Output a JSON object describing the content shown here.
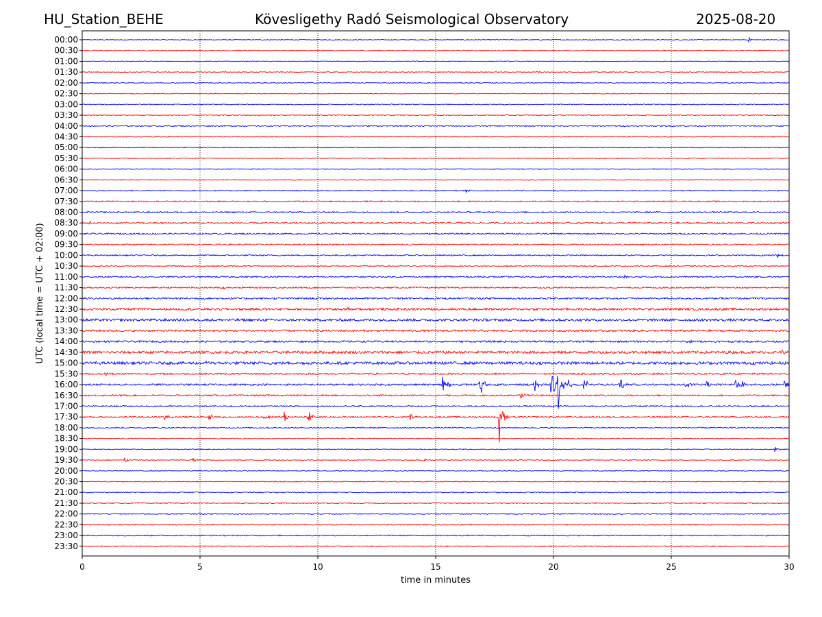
{
  "header": {
    "station": "HU_Station_BEHE",
    "observatory": "Kövesligethy Radó Seismological Observatory",
    "date": "2025-08-20"
  },
  "chart_data": {
    "type": "line",
    "title": "Kövesligethy Radó Seismological Observatory",
    "xlabel": "time in minutes",
    "ylabel": "UTC (local time = UTC + 02:00)",
    "xlim": [
      0,
      30
    ],
    "xticks": [
      0,
      5,
      10,
      15,
      20,
      25,
      30
    ],
    "vertical_gridlines_at": [
      5,
      10,
      15,
      20,
      25
    ],
    "grid": "vertical dotted",
    "row_labels": [
      "00:00",
      "00:30",
      "01:00",
      "01:30",
      "02:00",
      "02:30",
      "03:00",
      "03:30",
      "04:00",
      "04:30",
      "05:00",
      "05:30",
      "06:00",
      "06:30",
      "07:00",
      "07:30",
      "08:00",
      "08:30",
      "09:00",
      "09:30",
      "10:00",
      "10:30",
      "11:00",
      "11:30",
      "12:00",
      "12:30",
      "13:00",
      "13:30",
      "14:00",
      "14:30",
      "15:00",
      "15:30",
      "16:00",
      "16:30",
      "17:00",
      "17:30",
      "18:00",
      "18:30",
      "19:00",
      "19:30",
      "20:00",
      "20:30",
      "21:00",
      "21:30",
      "22:00",
      "22:30",
      "23:00",
      "23:30"
    ],
    "trace_colors": [
      "#0000ff",
      "#ff0000"
    ],
    "noise_amplitude_by_row": [
      0.6,
      0.6,
      0.5,
      0.6,
      0.6,
      0.5,
      0.6,
      0.6,
      0.8,
      0.6,
      0.6,
      0.6,
      0.6,
      0.6,
      0.8,
      0.9,
      1.0,
      1.1,
      1.0,
      0.9,
      0.9,
      0.8,
      1.0,
      1.0,
      1.3,
      1.6,
      1.8,
      1.4,
      1.3,
      1.9,
      2.0,
      1.2,
      1.3,
      1.1,
      1.0,
      1.0,
      0.8,
      0.6,
      0.6,
      0.6,
      0.6,
      0.6,
      0.7,
      0.6,
      0.7,
      0.7,
      0.8,
      0.7
    ],
    "events": [
      {
        "row": "00:00",
        "minute": 28.3,
        "amplitude": 4
      },
      {
        "row": "01:30",
        "minute": 19.3,
        "amplitude": 3
      },
      {
        "row": "07:00",
        "minute": 16.3,
        "amplitude": 3
      },
      {
        "row": "08:30",
        "minute": 0.3,
        "amplitude": 3
      },
      {
        "row": "10:00",
        "minute": 29.5,
        "amplitude": 3
      },
      {
        "row": "11:00",
        "minute": 23.0,
        "amplitude": 3
      },
      {
        "row": "11:30",
        "minute": 5.9,
        "amplitude": 4
      },
      {
        "row": "12:30",
        "minute": 11.2,
        "amplitude": 4
      },
      {
        "row": "14:00",
        "minute": 25.7,
        "amplitude": 6
      },
      {
        "row": "14:30",
        "minute": 29.7,
        "amplitude": 4
      },
      {
        "row": "15:00",
        "minute": 5.2,
        "amplitude": 5
      },
      {
        "row": "15:30",
        "minute": 1.0,
        "amplitude": 4
      },
      {
        "row": "16:00",
        "minute": 15.3,
        "amplitude": 18
      },
      {
        "row": "16:00",
        "minute": 16.9,
        "amplitude": 22
      },
      {
        "row": "16:00",
        "minute": 19.2,
        "amplitude": 12
      },
      {
        "row": "16:00",
        "minute": 19.9,
        "amplitude": 30
      },
      {
        "row": "16:00",
        "minute": 20.2,
        "amplitude": 38
      },
      {
        "row": "16:00",
        "minute": 20.6,
        "amplitude": 8
      },
      {
        "row": "16:00",
        "minute": 21.3,
        "amplitude": 12
      },
      {
        "row": "16:00",
        "minute": 22.8,
        "amplitude": 16
      },
      {
        "row": "16:00",
        "minute": 25.6,
        "amplitude": 6
      },
      {
        "row": "16:00",
        "minute": 26.5,
        "amplitude": 8
      },
      {
        "row": "16:00",
        "minute": 27.7,
        "amplitude": 12
      },
      {
        "row": "16:00",
        "minute": 28.0,
        "amplitude": 8
      },
      {
        "row": "16:00",
        "minute": 29.8,
        "amplitude": 6
      },
      {
        "row": "16:30",
        "minute": 18.6,
        "amplitude": 6
      },
      {
        "row": "17:30",
        "minute": 3.5,
        "amplitude": 5
      },
      {
        "row": "17:30",
        "minute": 5.4,
        "amplitude": 6
      },
      {
        "row": "17:30",
        "minute": 7.7,
        "amplitude": 10
      },
      {
        "row": "17:30",
        "minute": 8.5,
        "amplitude": 16
      },
      {
        "row": "17:30",
        "minute": 9.6,
        "amplitude": 12
      },
      {
        "row": "17:30",
        "minute": 13.9,
        "amplitude": 8
      },
      {
        "row": "17:30",
        "minute": 17.7,
        "amplitude": 40
      },
      {
        "row": "19:00",
        "minute": 29.4,
        "amplitude": 4
      },
      {
        "row": "19:30",
        "minute": 1.8,
        "amplitude": 4
      },
      {
        "row": "19:30",
        "minute": 4.7,
        "amplitude": 4
      },
      {
        "row": "19:30",
        "minute": 14.5,
        "amplitude": 3
      }
    ]
  }
}
